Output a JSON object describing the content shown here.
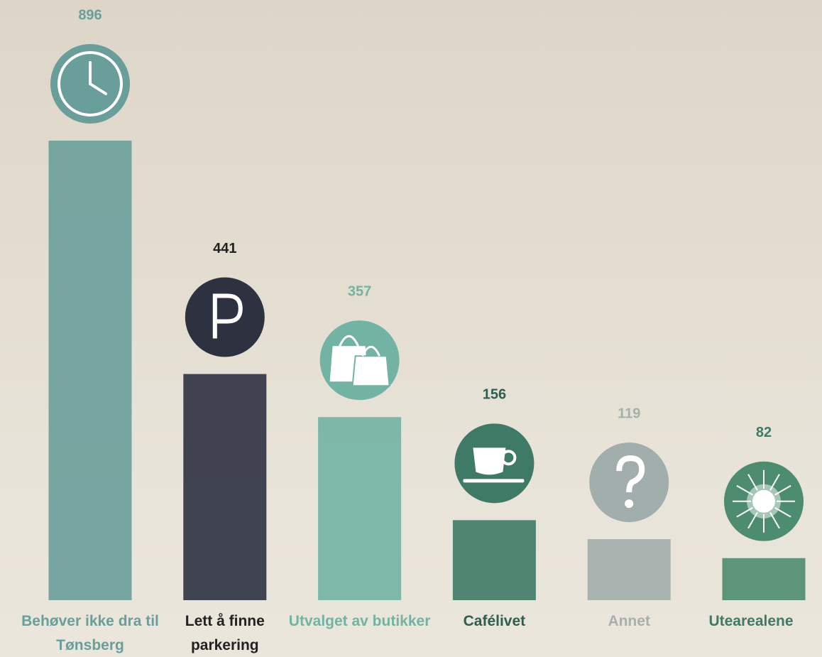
{
  "chart_data": {
    "type": "bar",
    "categories": [
      "Behøver ikke dra til Tønsberg",
      "Lett å finne parkering",
      "Utvalget av butikker",
      "Cafélivet",
      "Annet",
      "Utearealene"
    ],
    "values": [
      896,
      441,
      357,
      156,
      119,
      82
    ],
    "colors": [
      "#6a9e9b",
      "#2e3140",
      "#72b3a3",
      "#3f7a66",
      "#a2aeac",
      "#4d8c6e"
    ],
    "label_colors": [
      "#6a9e9b",
      "#222222",
      "#72b3a3",
      "#2f5e50",
      "#a8b0ad",
      "#3f7a66"
    ]
  }
}
